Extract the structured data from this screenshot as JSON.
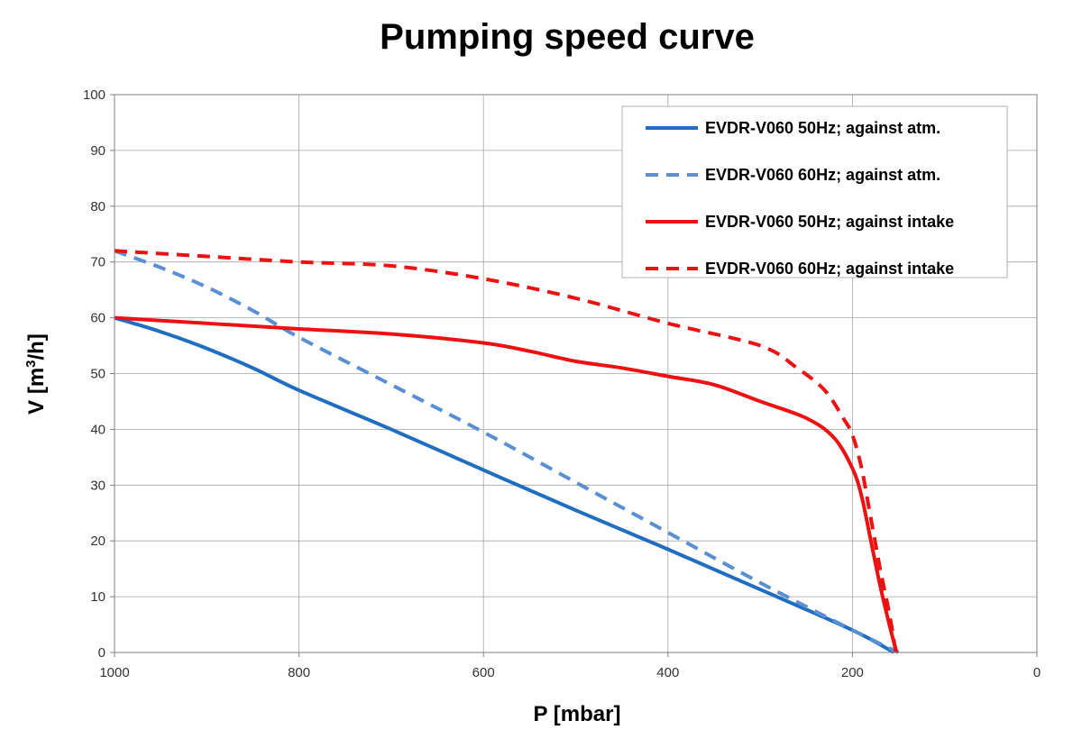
{
  "chart_data": {
    "type": "line",
    "title": "Pumping speed curve",
    "xlabel": "P [mbar]",
    "ylabel_main": "V [m",
    "ylabel_sup": "3",
    "ylabel_tail": "/h]",
    "xlim": [
      1000,
      0
    ],
    "ylim": [
      0,
      100
    ],
    "x_reversed": true,
    "grid": true,
    "legend_position": "top-right",
    "x_ticks": [
      1000,
      800,
      600,
      400,
      200,
      0
    ],
    "y_ticks": [
      0,
      10,
      20,
      30,
      40,
      50,
      60,
      70,
      80,
      90,
      100
    ],
    "series": [
      {
        "name": "EVDR-V060 50Hz; against atm.",
        "color": "#1f6ec1",
        "dash": "solid",
        "points": [
          [
            1000,
            60
          ],
          [
            950,
            57.5
          ],
          [
            900,
            54.5
          ],
          [
            850,
            51
          ],
          [
            800,
            47
          ],
          [
            700,
            40
          ],
          [
            600,
            32.7
          ],
          [
            500,
            25.5
          ],
          [
            400,
            18.5
          ],
          [
            300,
            11.3
          ],
          [
            200,
            4
          ],
          [
            155,
            0
          ]
        ]
      },
      {
        "name": "EVDR-V060 60Hz; against atm.",
        "color": "#5b8fd4",
        "dash": "dashed",
        "points": [
          [
            1000,
            72
          ],
          [
            950,
            69
          ],
          [
            900,
            65.5
          ],
          [
            850,
            61.3
          ],
          [
            800,
            56.5
          ],
          [
            700,
            48
          ],
          [
            600,
            39.5
          ],
          [
            500,
            30.5
          ],
          [
            400,
            21.5
          ],
          [
            300,
            12.5
          ],
          [
            200,
            4
          ],
          [
            150,
            0
          ]
        ]
      },
      {
        "name": "EVDR-V060 50Hz; against intake",
        "color": "#ee1111",
        "dash": "solid",
        "points": [
          [
            1000,
            60
          ],
          [
            900,
            59
          ],
          [
            800,
            58
          ],
          [
            700,
            57.1
          ],
          [
            600,
            55.5
          ],
          [
            550,
            54
          ],
          [
            500,
            52.2
          ],
          [
            450,
            51
          ],
          [
            400,
            49.5
          ],
          [
            350,
            48
          ],
          [
            300,
            45
          ],
          [
            250,
            42
          ],
          [
            220,
            38.5
          ],
          [
            200,
            33
          ],
          [
            190,
            28
          ],
          [
            180,
            20
          ],
          [
            170,
            12
          ],
          [
            160,
            5
          ],
          [
            152,
            0
          ]
        ]
      },
      {
        "name": "EVDR-V060 60Hz; against intake",
        "color": "#ee1111",
        "dash": "dashed",
        "points": [
          [
            1000,
            72
          ],
          [
            900,
            71
          ],
          [
            800,
            70
          ],
          [
            700,
            69.3
          ],
          [
            600,
            67
          ],
          [
            500,
            63.5
          ],
          [
            400,
            59
          ],
          [
            300,
            55
          ],
          [
            260,
            51
          ],
          [
            230,
            47
          ],
          [
            210,
            42
          ],
          [
            200,
            39
          ],
          [
            190,
            33
          ],
          [
            180,
            24
          ],
          [
            170,
            15
          ],
          [
            160,
            7
          ],
          [
            153,
            0
          ]
        ]
      }
    ]
  }
}
